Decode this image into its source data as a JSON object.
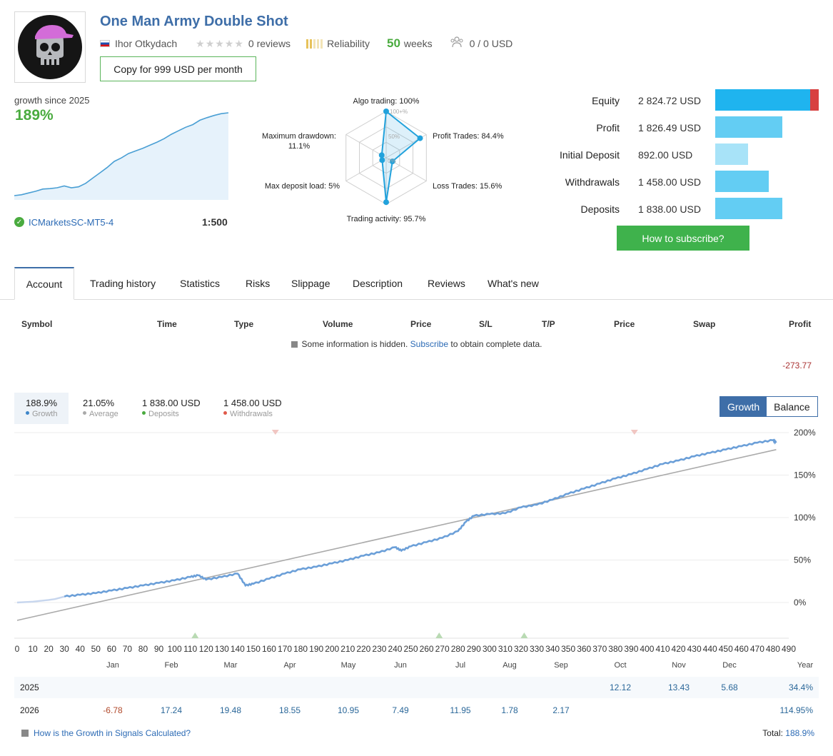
{
  "header": {
    "title": "One Man Army Double Shot",
    "author": "Ihor Otkydach",
    "stars": "★★★★★",
    "reviews": "0 reviews",
    "reliability": "Reliability",
    "weeks_num": "50",
    "weeks_label": "weeks",
    "subscribers": "0 / 0 USD",
    "copy_button": "Copy for 999 USD per month"
  },
  "growth": {
    "label": "growth since 2025",
    "value": "189%",
    "server": "ICMarketsSC-MT5-4",
    "leverage": "1:500"
  },
  "radar": {
    "algo": "Algo trading: 100%",
    "profit_trades": "Profit Trades: 84.4%",
    "loss_trades": "Loss Trades: 15.6%",
    "activity": "Trading activity: 95.7%",
    "deposit_load": "Max deposit load: 5%",
    "drawdown_line1": "Maximum drawdown:",
    "drawdown_line2": "11.1%",
    "ring_100": "100+%",
    "ring_50": "50%",
    "ring_0": "0%",
    "values": {
      "algo": 100,
      "profit": 84.4,
      "loss": 15.6,
      "activity": 95.7,
      "load": 5,
      "drawdown": 11.1
    }
  },
  "equity": {
    "rows": [
      {
        "label": "Equity",
        "value": "2 824.72 USD",
        "amount": 2824.72,
        "color": "#1fb4ef"
      },
      {
        "label": "Profit",
        "value": "1 826.49 USD",
        "amount": 1826.49,
        "color": "#63cdf3"
      },
      {
        "label": "Initial Deposit",
        "value": "892.00 USD",
        "amount": 892.0,
        "color": "#a8e3f8"
      },
      {
        "label": "Withdrawals",
        "value": "1 458.00 USD",
        "amount": 1458.0,
        "color": "#63cdf3"
      },
      {
        "label": "Deposits",
        "value": "1 838.00 USD",
        "amount": 1838.0,
        "color": "#63cdf3"
      }
    ],
    "equity_red_fraction": 0.08,
    "subscribe_button": "How to subscribe?"
  },
  "tabs": [
    "Account",
    "Trading history",
    "Statistics",
    "Risks",
    "Slippage",
    "Description",
    "Reviews",
    "What's new"
  ],
  "table": {
    "headers": [
      "Symbol",
      "Time",
      "Type",
      "Volume",
      "Price",
      "S/L",
      "T/P",
      "Price",
      "Swap",
      "Profit"
    ],
    "hidden_prefix": "Some information is hidden.",
    "hidden_link": "Subscribe",
    "hidden_suffix": "to obtain complete data.",
    "profit_total": "-273.77"
  },
  "summary": [
    {
      "value": "188.9%",
      "label": "Growth",
      "color": "#3e86c9"
    },
    {
      "value": "21.05%",
      "label": "Average",
      "color": "#aaaaaa"
    },
    {
      "value": "1 838.00 USD",
      "label": "Deposits",
      "color": "#4aab3f"
    },
    {
      "value": "1 458.00 USD",
      "label": "Withdrawals",
      "color": "#e05a4a"
    }
  ],
  "toggle": {
    "growth": "Growth",
    "balance": "Balance"
  },
  "chart_data": {
    "type": "line",
    "x_ticks": [
      0,
      10,
      20,
      30,
      40,
      50,
      60,
      70,
      80,
      90,
      100,
      110,
      120,
      130,
      140,
      150,
      160,
      170,
      180,
      190,
      200,
      210,
      220,
      230,
      240,
      250,
      260,
      270,
      280,
      290,
      300,
      310,
      320,
      330,
      340,
      350,
      360,
      370,
      380,
      390,
      400,
      410,
      420,
      430,
      440,
      450,
      460,
      470,
      480,
      490
    ],
    "y_ticks": [
      "200%",
      "150%",
      "100%",
      "50%",
      "0%"
    ],
    "y_tick_values": [
      200,
      150,
      100,
      50,
      0
    ],
    "ylim": [
      -42,
      205
    ],
    "xlim": [
      0,
      490
    ],
    "series": [
      {
        "points": [
          [
            0,
            0
          ],
          [
            10,
            1
          ],
          [
            20,
            3
          ],
          [
            24,
            4
          ],
          [
            30,
            7
          ],
          [
            40,
            9
          ],
          [
            50,
            11
          ],
          [
            60,
            14
          ],
          [
            70,
            17
          ],
          [
            80,
            20
          ],
          [
            90,
            23
          ],
          [
            100,
            26
          ],
          [
            110,
            30
          ],
          [
            115,
            32
          ],
          [
            120,
            27
          ],
          [
            130,
            30
          ],
          [
            140,
            34
          ],
          [
            145,
            20
          ],
          [
            150,
            22
          ],
          [
            160,
            28
          ],
          [
            170,
            34
          ],
          [
            180,
            39
          ],
          [
            190,
            42
          ],
          [
            200,
            46
          ],
          [
            210,
            50
          ],
          [
            220,
            55
          ],
          [
            230,
            59
          ],
          [
            240,
            65
          ],
          [
            244,
            61
          ],
          [
            250,
            66
          ],
          [
            260,
            71
          ],
          [
            270,
            76
          ],
          [
            280,
            84
          ],
          [
            285,
            95
          ],
          [
            290,
            102
          ],
          [
            300,
            104
          ],
          [
            310,
            105
          ],
          [
            320,
            112
          ],
          [
            330,
            115
          ],
          [
            340,
            121
          ],
          [
            350,
            128
          ],
          [
            360,
            134
          ],
          [
            370,
            140
          ],
          [
            380,
            146
          ],
          [
            390,
            151
          ],
          [
            400,
            157
          ],
          [
            410,
            163
          ],
          [
            420,
            167
          ],
          [
            430,
            172
          ],
          [
            440,
            176
          ],
          [
            450,
            180
          ],
          [
            460,
            184
          ],
          [
            470,
            188
          ],
          [
            480,
            191
          ],
          [
            482,
            188
          ]
        ]
      },
      {
        "points": [
          [
            0,
            -21
          ],
          [
            482,
            180
          ]
        ]
      }
    ],
    "deposit_markers": [
      113,
      268,
      322
    ],
    "withdrawal_markers": [
      164,
      392
    ]
  },
  "mini_chart": {
    "points": [
      [
        0,
        0
      ],
      [
        10,
        2
      ],
      [
        20,
        6
      ],
      [
        30,
        10
      ],
      [
        40,
        15
      ],
      [
        50,
        16
      ],
      [
        60,
        18
      ],
      [
        70,
        22
      ],
      [
        80,
        18
      ],
      [
        90,
        20
      ],
      [
        100,
        28
      ],
      [
        110,
        40
      ],
      [
        120,
        52
      ],
      [
        130,
        64
      ],
      [
        140,
        78
      ],
      [
        150,
        86
      ],
      [
        160,
        96
      ],
      [
        170,
        102
      ],
      [
        180,
        108
      ],
      [
        190,
        115
      ],
      [
        200,
        122
      ],
      [
        210,
        130
      ],
      [
        220,
        140
      ],
      [
        230,
        148
      ],
      [
        240,
        156
      ],
      [
        250,
        162
      ],
      [
        260,
        172
      ],
      [
        270,
        178
      ],
      [
        280,
        183
      ],
      [
        290,
        187
      ],
      [
        300,
        189
      ]
    ]
  },
  "monthly": {
    "months": [
      "Jan",
      "Feb",
      "Mar",
      "Apr",
      "May",
      "Jun",
      "Jul",
      "Aug",
      "Sep",
      "Oct",
      "Nov",
      "Dec",
      "Year"
    ],
    "rows": [
      {
        "year": "2025",
        "values": [
          "",
          "",
          "",
          "",
          "",
          "",
          "",
          "",
          "",
          "12.12",
          "13.43",
          "5.68",
          "34.4%"
        ]
      },
      {
        "year": "2026",
        "values": [
          "-6.78",
          "17.24",
          "19.48",
          "18.55",
          "10.95",
          "7.49",
          "11.95",
          "1.78",
          "2.17",
          "",
          "",
          "",
          "114.95%"
        ]
      }
    ],
    "footer_link": "How is the Growth in Signals Calculated?",
    "total_label": "Total:",
    "total_value": "188.9%"
  }
}
